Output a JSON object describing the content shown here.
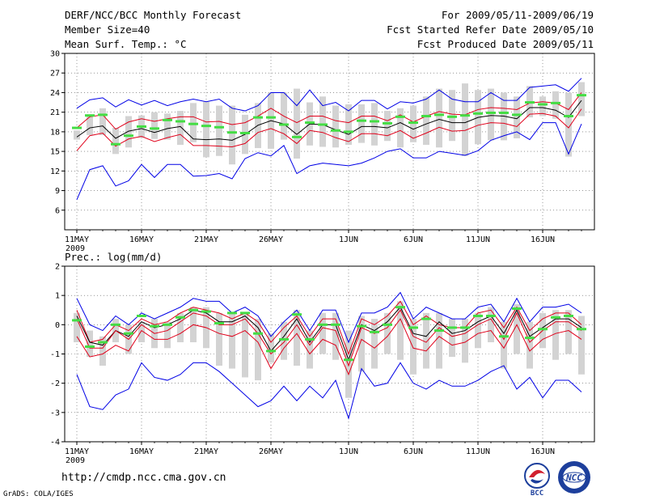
{
  "header": {
    "title": "DERF/NCC/BCC Monthly Forecast",
    "member": "Member Size=40",
    "variable": "Mean Surf. Temp.: °C",
    "period": "For 2009/05/11-2009/06/19",
    "refer": "Fcst Started Refer Date 2009/05/10",
    "produced": "Fcst Produced Date 2009/05/11"
  },
  "footer": {
    "url": "http://cmdp.ncc.cma.gov.cn",
    "credit": "GrADS: COLA/IGES",
    "logo_bcc": "BCC",
    "logo_ncc": "NCC"
  },
  "colors": {
    "mean": "#000000",
    "spread": "#e0001a",
    "extreme": "#0000e6",
    "obs": "#44dd44",
    "box": "#d3d3d3"
  },
  "chart_data": [
    {
      "type": "line",
      "panel": "temperature",
      "title": "Mean Surf. Temp.: °C",
      "xlabel": "",
      "ylabel": "",
      "ylim": [
        3,
        30
      ],
      "yticks": [
        6,
        9,
        12,
        15,
        18,
        21,
        24,
        27,
        30
      ],
      "xticks": [
        {
          "day": 1,
          "label": "11MAY"
        },
        {
          "day": 6,
          "label": "16MAY"
        },
        {
          "day": 11,
          "label": "21MAY"
        },
        {
          "day": 16,
          "label": "26MAY"
        },
        {
          "day": 22,
          "label": "1JUN"
        },
        {
          "day": 27,
          "label": "6JUN"
        },
        {
          "day": 32,
          "label": "11JUN"
        },
        {
          "day": 37,
          "label": "16JUN"
        }
      ],
      "year_label": "2009",
      "days": [
        1,
        2,
        3,
        4,
        5,
        6,
        7,
        8,
        9,
        10,
        11,
        12,
        13,
        14,
        15,
        16,
        17,
        18,
        19,
        20,
        21,
        22,
        23,
        24,
        25,
        26,
        27,
        28,
        29,
        30,
        31,
        32,
        33,
        34,
        35,
        36,
        37,
        38,
        39,
        40
      ],
      "series": [
        {
          "name": "max",
          "role": "extreme",
          "values": [
            21.6,
            22.9,
            23.2,
            21.8,
            22.9,
            22.1,
            22.8,
            22.0,
            22.6,
            23.0,
            22.6,
            23.0,
            21.6,
            21.2,
            22.0,
            24.0,
            24.0,
            22.0,
            24.4,
            22.0,
            22.5,
            21.2,
            22.8,
            22.8,
            21.5,
            22.6,
            22.4,
            23.0,
            24.4,
            23.0,
            22.6,
            22.6,
            24.0,
            22.8,
            22.8,
            24.8,
            25.0,
            25.2,
            24.2,
            26.2
          ]
        },
        {
          "name": "upper",
          "role": "spread",
          "values": [
            18.6,
            20.3,
            20.6,
            18.4,
            19.5,
            20.0,
            19.6,
            20.0,
            20.3,
            20.3,
            19.5,
            19.6,
            19.1,
            19.4,
            20.4,
            21.6,
            20.4,
            19.4,
            20.4,
            20.4,
            19.7,
            19.4,
            20.4,
            20.4,
            19.7,
            20.6,
            19.5,
            20.4,
            21.1,
            20.7,
            20.6,
            21.4,
            21.7,
            21.6,
            21.4,
            22.4,
            22.6,
            22.4,
            21.4,
            24.0
          ]
        },
        {
          "name": "mean",
          "role": "mean",
          "values": [
            17.2,
            18.6,
            18.9,
            17.0,
            18.1,
            18.5,
            17.9,
            18.5,
            18.8,
            16.9,
            16.8,
            16.9,
            16.7,
            17.6,
            19.0,
            19.7,
            19.2,
            17.6,
            19.2,
            19.1,
            18.3,
            17.6,
            18.8,
            18.8,
            18.6,
            19.4,
            18.4,
            19.2,
            19.9,
            19.4,
            19.4,
            20.2,
            20.5,
            20.4,
            20.0,
            21.7,
            21.7,
            21.3,
            20.2,
            22.8
          ]
        },
        {
          "name": "lower",
          "role": "spread",
          "values": [
            15.1,
            17.4,
            17.8,
            15.8,
            16.9,
            17.3,
            16.5,
            17.1,
            17.6,
            15.9,
            15.9,
            15.8,
            15.7,
            16.2,
            17.9,
            18.5,
            17.7,
            16.2,
            18.2,
            17.9,
            17.1,
            16.5,
            17.7,
            17.7,
            17.4,
            18.2,
            17.0,
            17.8,
            18.7,
            18.1,
            18.2,
            19.0,
            19.4,
            19.3,
            18.8,
            20.7,
            20.8,
            20.4,
            18.6,
            21.5
          ]
        },
        {
          "name": "min",
          "role": "extreme",
          "values": [
            7.6,
            12.2,
            12.8,
            9.7,
            10.5,
            13.0,
            11.0,
            13.0,
            13.0,
            11.2,
            11.3,
            11.6,
            10.8,
            13.9,
            14.8,
            14.3,
            15.9,
            11.6,
            12.8,
            13.2,
            13.0,
            12.8,
            13.2,
            14.0,
            15.0,
            15.4,
            14.0,
            14.0,
            15.0,
            14.7,
            14.4,
            15.1,
            16.7,
            17.4,
            18.0,
            16.8,
            19.4,
            19.4,
            14.6,
            19.2
          ]
        }
      ],
      "boxes": {
        "top": [
          18.2,
          20.5,
          21.6,
          18.6,
          20.4,
          20.5,
          21.0,
          20.8,
          21.2,
          22.4,
          22.6,
          22.0,
          22.0,
          20.6,
          22.4,
          24.0,
          24.0,
          24.6,
          22.5,
          23.4,
          22.0,
          22.2,
          22.2,
          22.4,
          21.2,
          21.6,
          22.0,
          23.4,
          24.6,
          24.4,
          25.4,
          24.4,
          24.6,
          24.0,
          23.4,
          25.0,
          23.4,
          24.2,
          24.0,
          25.6
        ],
        "bottom": [
          16.8,
          17.5,
          17.5,
          14.6,
          15.6,
          17.1,
          16.9,
          16.8,
          16.0,
          16.4,
          14.1,
          14.3,
          13.0,
          14.6,
          15.5,
          15.4,
          16.8,
          13.9,
          15.9,
          15.7,
          15.6,
          16.0,
          16.3,
          15.9,
          16.6,
          15.6,
          16.4,
          16.0,
          15.6,
          16.6,
          14.3,
          16.1,
          16.7,
          16.7,
          17.0,
          20.2,
          20.4,
          20.0,
          14.2,
          20.4
        ]
      },
      "observed": [
        18.6,
        20.5,
        20.6,
        16.1,
        17.4,
        18.8,
        18.5,
        19.8,
        19.6,
        19.2,
        18.9,
        18.7,
        17.9,
        17.8,
        20.2,
        20.2,
        19.1,
        17.2,
        19.4,
        19.1,
        18.2,
        18.0,
        19.7,
        19.6,
        19.3,
        20.3,
        19.4,
        20.4,
        20.6,
        20.3,
        20.5,
        20.8,
        20.9,
        20.9,
        20.6,
        22.5,
        22.2,
        22.4,
        20.4,
        23.6
      ]
    },
    {
      "type": "line",
      "panel": "precipitation",
      "title": "Prec.: log(mm/d)",
      "xlabel": "",
      "ylabel": "",
      "ylim": [
        -4,
        2
      ],
      "yticks": [
        -4,
        -3,
        -2,
        -1,
        0,
        1,
        2
      ],
      "xticks": [
        {
          "day": 1,
          "label": "11MAY"
        },
        {
          "day": 6,
          "label": "16MAY"
        },
        {
          "day": 11,
          "label": "21MAY"
        },
        {
          "day": 16,
          "label": "26MAY"
        },
        {
          "day": 22,
          "label": "1JUN"
        },
        {
          "day": 27,
          "label": "6JUN"
        },
        {
          "day": 32,
          "label": "11JUN"
        },
        {
          "day": 37,
          "label": "16JUN"
        }
      ],
      "year_label": "2009",
      "days": [
        1,
        2,
        3,
        4,
        5,
        6,
        7,
        8,
        9,
        10,
        11,
        12,
        13,
        14,
        15,
        16,
        17,
        18,
        19,
        20,
        21,
        22,
        23,
        24,
        25,
        26,
        27,
        28,
        29,
        30,
        31,
        32,
        33,
        34,
        35,
        36,
        37,
        38,
        39,
        40
      ],
      "series": [
        {
          "name": "max",
          "role": "extreme",
          "values": [
            0.9,
            0.0,
            -0.2,
            0.3,
            0.0,
            0.4,
            0.2,
            0.4,
            0.6,
            0.9,
            0.8,
            0.8,
            0.4,
            0.6,
            0.3,
            -0.4,
            0.1,
            0.5,
            -0.2,
            0.5,
            0.5,
            -0.6,
            0.4,
            0.4,
            0.6,
            1.1,
            0.2,
            0.6,
            0.4,
            0.2,
            0.2,
            0.6,
            0.7,
            0.1,
            0.9,
            0.1,
            0.6,
            0.6,
            0.7,
            0.4
          ]
        },
        {
          "name": "upper",
          "role": "spread",
          "values": [
            0.5,
            -0.6,
            -0.5,
            0.0,
            -0.2,
            0.2,
            0.0,
            0.1,
            0.4,
            0.6,
            0.5,
            0.4,
            0.2,
            0.4,
            0.1,
            -0.6,
            -0.1,
            0.3,
            -0.4,
            0.2,
            0.2,
            -1.0,
            0.2,
            0.0,
            0.3,
            0.8,
            0.0,
            0.3,
            0.0,
            -0.1,
            -0.1,
            0.4,
            0.5,
            -0.1,
            0.6,
            -0.2,
            0.2,
            0.4,
            0.4,
            0.0
          ]
        },
        {
          "name": "mean",
          "role": "mean",
          "values": [
            0.3,
            -0.6,
            -0.7,
            -0.2,
            -0.4,
            0.1,
            -0.1,
            0.0,
            0.2,
            0.5,
            0.4,
            0.1,
            0.1,
            0.3,
            -0.1,
            -0.9,
            -0.4,
            0.2,
            -0.6,
            0.0,
            0.0,
            -1.2,
            0.0,
            -0.2,
            0.1,
            0.6,
            -0.3,
            -0.4,
            0.1,
            -0.3,
            -0.2,
            0.1,
            0.3,
            -0.3,
            0.5,
            -0.4,
            -0.1,
            0.2,
            0.2,
            -0.1
          ]
        },
        {
          "name": "lower",
          "role": "spread",
          "values": [
            -0.4,
            -1.1,
            -1.0,
            -0.7,
            -0.9,
            -0.2,
            -0.5,
            -0.5,
            -0.3,
            0.0,
            -0.1,
            -0.3,
            -0.4,
            -0.2,
            -0.6,
            -1.5,
            -0.8,
            -0.3,
            -1.0,
            -0.5,
            -0.7,
            -1.7,
            -0.5,
            -0.8,
            -0.4,
            0.2,
            -0.8,
            -0.9,
            -0.4,
            -0.7,
            -0.6,
            -0.3,
            -0.2,
            -0.8,
            0.0,
            -0.9,
            -0.5,
            -0.3,
            -0.2,
            -0.5
          ]
        },
        {
          "name": "min",
          "role": "extreme",
          "values": [
            -1.7,
            -2.8,
            -2.9,
            -2.4,
            -2.2,
            -1.3,
            -1.8,
            -1.9,
            -1.7,
            -1.3,
            -1.3,
            -1.6,
            -2.0,
            -2.4,
            -2.8,
            -2.6,
            -2.1,
            -2.6,
            -2.1,
            -2.5,
            -1.9,
            -3.2,
            -1.5,
            -2.1,
            -2.0,
            -1.3,
            -2.0,
            -2.2,
            -1.9,
            -2.1,
            -2.1,
            -1.9,
            -1.6,
            -1.4,
            -2.2,
            -1.8,
            -2.5,
            -1.9,
            -1.9,
            -2.3
          ]
        },
        {
          "name": "lower2",
          "role": "spread-inner",
          "values": [
            0.2,
            -0.8,
            -0.8,
            -0.2,
            -0.5,
            0.0,
            -0.3,
            -0.2,
            0.1,
            0.4,
            0.3,
            0.0,
            0.0,
            0.2,
            -0.3,
            -1.0,
            -0.6,
            0.0,
            -0.7,
            -0.1,
            -0.2,
            -1.4,
            -0.1,
            -0.3,
            -0.1,
            0.5,
            -0.4,
            -0.6,
            -0.1,
            -0.4,
            -0.3,
            0.0,
            0.2,
            -0.5,
            0.4,
            -0.6,
            -0.2,
            0.1,
            0.1,
            -0.2
          ]
        }
      ],
      "boxes": {
        "top": [
          0.4,
          -0.2,
          -0.4,
          0.2,
          0.0,
          0.1,
          0.2,
          0.1,
          0.4,
          0.6,
          0.6,
          0.4,
          0.4,
          0.4,
          0.2,
          -0.3,
          0.1,
          0.5,
          -0.2,
          0.4,
          0.4,
          -0.2,
          0.3,
          0.2,
          0.4,
          0.8,
          0.2,
          0.4,
          0.4,
          0.2,
          0.2,
          0.4,
          0.6,
          0.1,
          0.7,
          0.1,
          0.4,
          0.5,
          0.5,
          0.3
        ],
        "bottom": [
          -0.6,
          -1.1,
          -1.4,
          -0.6,
          -1.0,
          -0.6,
          -0.8,
          -0.8,
          -0.6,
          -0.6,
          -0.8,
          -1.4,
          -1.5,
          -1.8,
          -1.9,
          -1.3,
          -1.2,
          -1.4,
          -1.5,
          -1.0,
          -1.2,
          -2.5,
          -1.6,
          -1.5,
          -1.0,
          -1.2,
          -1.7,
          -1.5,
          -1.5,
          -1.1,
          -1.3,
          -0.8,
          -0.6,
          -1.5,
          -1.0,
          -1.5,
          -0.8,
          -1.2,
          -1.0,
          -1.7
        ]
      },
      "observed": [
        0.15,
        -0.75,
        -0.6,
        0.0,
        -0.3,
        0.3,
        -0.05,
        0.0,
        0.25,
        0.5,
        0.45,
        0.05,
        0.4,
        0.4,
        -0.3,
        -0.9,
        -0.5,
        0.35,
        -0.5,
        0.0,
        0.0,
        -1.2,
        -0.05,
        -0.25,
        0.0,
        0.6,
        -0.1,
        0.2,
        -0.2,
        -0.1,
        -0.1,
        0.3,
        0.3,
        -0.4,
        0.55,
        -0.45,
        -0.15,
        0.25,
        0.3,
        -0.15
      ]
    }
  ]
}
